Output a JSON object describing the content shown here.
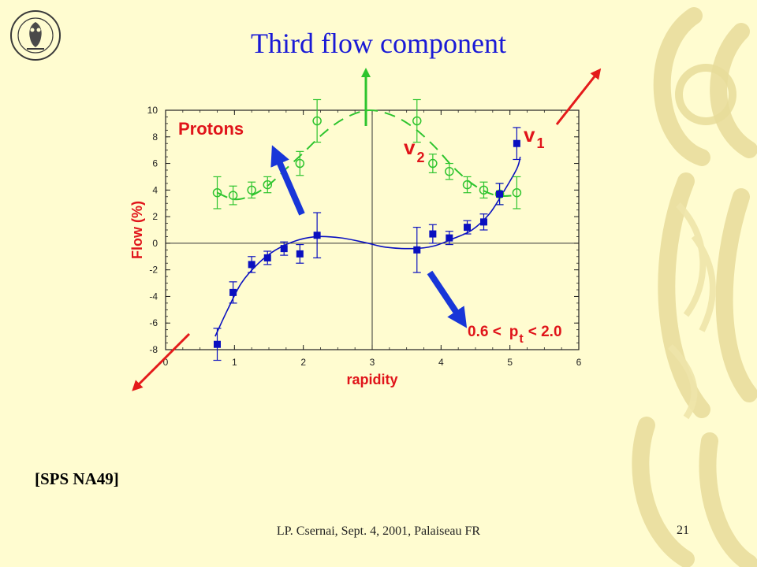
{
  "slide": {
    "title": "Third flow component",
    "reference": "[SPS NA49]",
    "footer": "LP. Csernai, Sept. 4, 2001, Palaiseau FR",
    "page_number": "21"
  },
  "colors": {
    "background": "#fffcd0",
    "title": "#1a1ad6",
    "v1_series": "#0a10c0",
    "v2_series": "#2ec42e",
    "labels": "#e0141a",
    "arrow_blue": "#1836d8",
    "arrow_red": "#e41a1a",
    "arrow_green": "#2ec42e"
  },
  "icons": {
    "logo": "university-of-bergen-seal-icon",
    "decoration": "owl-decoration-icon"
  },
  "chart_data": {
    "type": "scatter",
    "xlabel": "rapidity",
    "ylabel": "Flow (%)",
    "xlim": [
      0,
      6
    ],
    "ylim": [
      -8,
      10
    ],
    "x_ticks": [
      "0",
      "1",
      "2",
      "3",
      "4",
      "5",
      "6"
    ],
    "y_ticks": [
      "-8",
      "-6",
      "-4",
      "-2",
      "0",
      "2",
      "4",
      "6",
      "8",
      "10"
    ],
    "grid": false,
    "annotations": {
      "particle": "Protons",
      "pt_range_prefix": "0.6 <",
      "pt_symbol": "p",
      "pt_sub": "t",
      "pt_range_suffix": "< 2.0",
      "v1_label": "v",
      "v1_sub": "1",
      "v2_label": "v",
      "v2_sub": "2"
    },
    "series": [
      {
        "name": "v1",
        "marker": "filled-square",
        "points": [
          {
            "x": 0.75,
            "y": -7.6,
            "err": 1.2
          },
          {
            "x": 0.98,
            "y": -3.7,
            "err": 0.8
          },
          {
            "x": 1.25,
            "y": -1.6,
            "err": 0.6
          },
          {
            "x": 1.48,
            "y": -1.1,
            "err": 0.5
          },
          {
            "x": 1.72,
            "y": -0.4,
            "err": 0.5
          },
          {
            "x": 1.95,
            "y": -0.8,
            "err": 0.7
          },
          {
            "x": 2.2,
            "y": 0.6,
            "err": 1.7
          },
          {
            "x": 3.65,
            "y": -0.5,
            "err": 1.7
          },
          {
            "x": 3.88,
            "y": 0.7,
            "err": 0.7
          },
          {
            "x": 4.12,
            "y": 0.4,
            "err": 0.5
          },
          {
            "x": 4.38,
            "y": 1.2,
            "err": 0.5
          },
          {
            "x": 4.62,
            "y": 1.6,
            "err": 0.6
          },
          {
            "x": 4.85,
            "y": 3.7,
            "err": 0.8
          },
          {
            "x": 5.1,
            "y": 7.5,
            "err": 1.2
          }
        ],
        "fit_curve": [
          [
            0.72,
            -7.0
          ],
          [
            0.9,
            -5.0
          ],
          [
            1.1,
            -3.0
          ],
          [
            1.35,
            -1.5
          ],
          [
            1.6,
            -0.5
          ],
          [
            1.9,
            0.2
          ],
          [
            2.2,
            0.5
          ],
          [
            2.55,
            0.4
          ],
          [
            2.9,
            0.05
          ],
          [
            3.2,
            -0.3
          ],
          [
            3.6,
            -0.4
          ],
          [
            3.9,
            -0.2
          ],
          [
            4.2,
            0.4
          ],
          [
            4.45,
            1.0
          ],
          [
            4.7,
            2.2
          ],
          [
            4.9,
            3.8
          ],
          [
            5.1,
            5.6
          ],
          [
            5.15,
            6.5
          ]
        ]
      },
      {
        "name": "v2",
        "marker": "open-circle",
        "points": [
          {
            "x": 0.75,
            "y": 3.8,
            "err": 1.2
          },
          {
            "x": 0.98,
            "y": 3.6,
            "err": 0.7
          },
          {
            "x": 1.25,
            "y": 4.0,
            "err": 0.6
          },
          {
            "x": 1.48,
            "y": 4.4,
            "err": 0.6
          },
          {
            "x": 1.95,
            "y": 6.0,
            "err": 0.9
          },
          {
            "x": 2.2,
            "y": 9.2,
            "err": 1.6
          },
          {
            "x": 3.65,
            "y": 9.2,
            "err": 1.6
          },
          {
            "x": 3.88,
            "y": 6.0,
            "err": 0.7
          },
          {
            "x": 4.12,
            "y": 5.4,
            "err": 0.6
          },
          {
            "x": 4.38,
            "y": 4.4,
            "err": 0.6
          },
          {
            "x": 4.62,
            "y": 4.0,
            "err": 0.6
          },
          {
            "x": 4.85,
            "y": 3.7,
            "err": 0.8
          },
          {
            "x": 5.1,
            "y": 3.8,
            "err": 1.2
          }
        ],
        "fit_curve": [
          [
            0.75,
            3.8
          ],
          [
            1.0,
            3.3
          ],
          [
            1.25,
            3.6
          ],
          [
            1.5,
            4.4
          ],
          [
            1.75,
            5.6
          ],
          [
            2.0,
            6.8
          ],
          [
            2.3,
            8.3
          ],
          [
            2.6,
            9.4
          ],
          [
            2.95,
            10.0
          ],
          [
            3.3,
            9.6
          ],
          [
            3.6,
            8.7
          ],
          [
            3.9,
            7.3
          ],
          [
            4.2,
            5.6
          ],
          [
            4.5,
            4.3
          ],
          [
            4.8,
            3.6
          ],
          [
            5.1,
            3.6
          ]
        ]
      }
    ]
  }
}
